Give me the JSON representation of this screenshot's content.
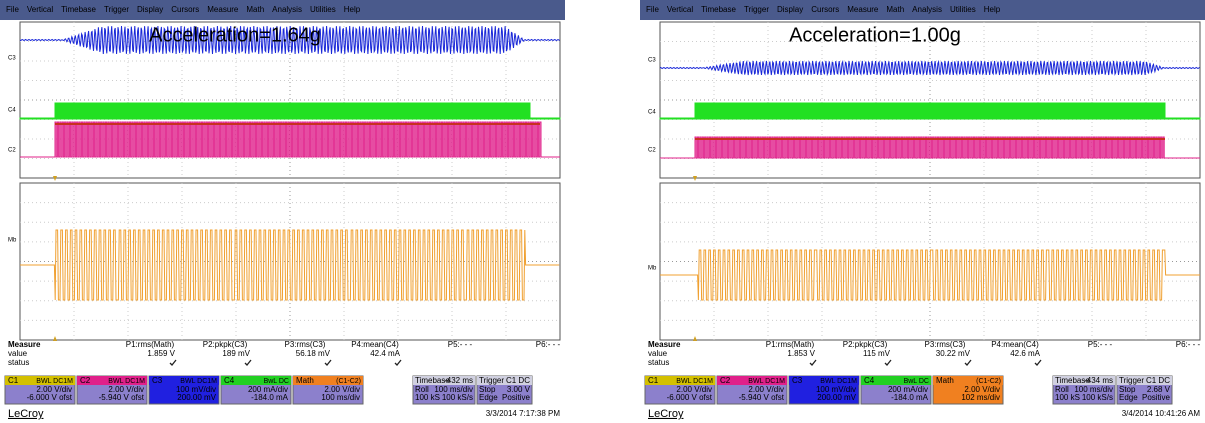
{
  "panels": [
    {
      "menu": [
        "File",
        "Vertical",
        "Timebase",
        "Trigger",
        "Display",
        "Cursors",
        "Measure",
        "Math",
        "Analysis",
        "Utilities",
        "Help"
      ],
      "annotation": "Acceleration=1.64g",
      "trace_labels": [
        "C3",
        "C4",
        "C2",
        "Mb"
      ],
      "measure": {
        "title": "Measure",
        "params": [
          "P1:rms(Math)",
          "P2:pkpk(C3)",
          "P3:rms(C3)",
          "P4:mean(C4)",
          "P5:- - -",
          "P6:- - -"
        ],
        "value_label": "value",
        "values": [
          "1.859 V",
          "189 mV",
          "56.18 mV",
          "42.4 mA"
        ],
        "status_label": "status"
      },
      "channels": [
        {
          "name": "C1",
          "tag": "BWL DC1M",
          "lines": [
            "2.00 V/div",
            "-6.000 V ofst"
          ]
        },
        {
          "name": "C2",
          "tag": "BWL DC1M",
          "lines": [
            "2.00 V/div",
            "-5.940 V ofst"
          ]
        },
        {
          "name": "C3",
          "tag": "BWL DC1M",
          "lines": [
            "100 mV/div",
            "200.00 mV"
          ]
        },
        {
          "name": "C4",
          "tag": "BwL DC",
          "lines": [
            "200 mA/div",
            "-184.0 mA"
          ]
        },
        {
          "name": "Math",
          "tag": "(C1-C2)",
          "lines": [
            "2.00 V/div",
            "100 ms/div"
          ]
        }
      ],
      "timebase": {
        "name": "Timebase",
        "tag": "-432 ms",
        "rows": [
          [
            "Roll",
            "100 ms/div"
          ],
          [
            "100 kS",
            "100 kS/s"
          ]
        ]
      },
      "trigger": {
        "name": "Trigger",
        "tag": "C1 DC",
        "rows": [
          [
            "Stop",
            "3.00 V"
          ],
          [
            "Edge",
            "Positive"
          ]
        ]
      },
      "brand": "LeCroy",
      "timestamp": "3/3/2014 7:17:38 PM"
    },
    {
      "menu": [
        "File",
        "Vertical",
        "Timebase",
        "Trigger",
        "Display",
        "Cursors",
        "Measure",
        "Math",
        "Analysis",
        "Utilities",
        "Help"
      ],
      "annotation": "Acceleration=1.00g",
      "trace_labels": [
        "C3",
        "C4",
        "C2",
        "Mb"
      ],
      "measure": {
        "title": "Measure",
        "params": [
          "P1:rms(Math)",
          "P2:pkpk(C3)",
          "P3:rms(C3)",
          "P4:mean(C4)",
          "P5:- - -",
          "P6:- - -"
        ],
        "value_label": "value",
        "values": [
          "1.853 V",
          "115 mV",
          "30.22 mV",
          "42.6 mA"
        ],
        "status_label": "status"
      },
      "channels": [
        {
          "name": "C1",
          "tag": "BWL DC1M",
          "lines": [
            "2.00 V/div",
            "-6.000 V ofst"
          ]
        },
        {
          "name": "C2",
          "tag": "BWL DC1M",
          "lines": [
            "2.00 V/div",
            "-5.940 V ofst"
          ]
        },
        {
          "name": "C3",
          "tag": "BWL DC1M",
          "lines": [
            "100 mV/div",
            "200.00 mV"
          ]
        },
        {
          "name": "C4",
          "tag": "BwL DC",
          "lines": [
            "200 mA/div",
            "-184.0 mA"
          ]
        },
        {
          "name": "Math",
          "tag": "(C1-C2)",
          "lines": [
            "2.00 V/div",
            "102 ms/div"
          ]
        }
      ],
      "timebase": {
        "name": "Timebase",
        "tag": "-434 ms",
        "rows": [
          [
            "Roll",
            "100 ms/div"
          ],
          [
            "100 kS",
            "100 kS/s"
          ]
        ]
      },
      "trigger": {
        "name": "Trigger",
        "tag": "C1 DC",
        "rows": [
          [
            "Stop",
            "2.68 V"
          ],
          [
            "Edge",
            "Positive"
          ]
        ]
      },
      "brand": "LeCroy",
      "timestamp": "3/4/2014 10:41:26 AM"
    }
  ]
}
